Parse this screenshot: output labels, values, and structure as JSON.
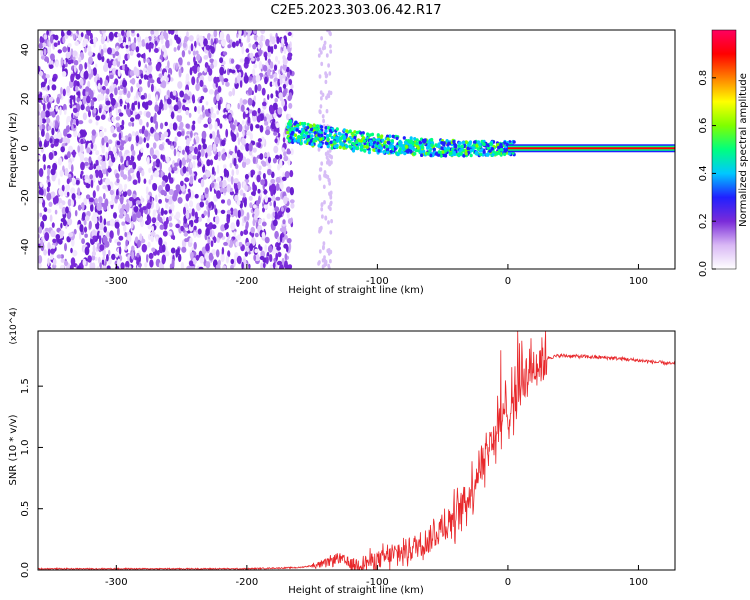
{
  "title": "C2E5.2023.303.06.42.R17",
  "colors": {
    "background": "#ffffff",
    "axis": "#000000",
    "snr_line": "#e8282b",
    "noise_purple": "#7a2bd9"
  },
  "chart_data": [
    {
      "type": "heatmap",
      "xlabel": "Height of straight line (km)",
      "ylabel": "Frequency (Hz)",
      "xlim": [
        -360,
        128
      ],
      "ylim": [
        -49,
        48
      ],
      "xticks": [
        -300,
        -200,
        -100,
        0,
        100
      ],
      "yticks": [
        -40,
        -20,
        0,
        20,
        40
      ],
      "colorbar": {
        "label": "Normalized spectral amplitude",
        "range": [
          0,
          1
        ],
        "ticks": [
          0.0,
          0.2,
          0.4,
          0.6,
          0.8
        ],
        "colormap": [
          "#ffffff",
          "#d9b8f5",
          "#7a2bd9",
          "#2020ff",
          "#00c8ff",
          "#00ff7f",
          "#7fff00",
          "#ffff00",
          "#ff8000",
          "#ff0000",
          "#ff0060"
        ]
      },
      "regions": [
        {
          "desc": "broadband noise",
          "x": [
            -360,
            -165
          ],
          "y": [
            -49,
            48
          ],
          "amplitude": 0.2
        },
        {
          "desc": "sparse column",
          "x": [
            -145,
            -135
          ],
          "y": [
            -49,
            48
          ],
          "amplitude": 0.1
        },
        {
          "desc": "signal band",
          "x": [
            -170,
            5
          ],
          "center_freq_start": 7,
          "center_freq_end": 0,
          "amplitude": 0.45
        },
        {
          "desc": "tone",
          "x": [
            0,
            128
          ],
          "y": [
            0,
            0
          ],
          "amplitude": 0.95
        }
      ]
    },
    {
      "type": "line",
      "xlabel": "Height of straight line (km)",
      "ylabel": "SNR (10 * v/v)",
      "y_multiplier": "(x10^4)",
      "xlim": [
        -360,
        128
      ],
      "ylim": [
        0,
        1.95
      ],
      "xticks": [
        -300,
        -200,
        -100,
        0,
        100
      ],
      "yticks": [
        0.0,
        0.5,
        1.0,
        1.5
      ],
      "series": [
        {
          "x": [
            -360,
            -300,
            -200,
            -160,
            -140,
            -130,
            -120,
            -100,
            -80,
            -60,
            -40,
            -30,
            -20,
            -10,
            0,
            10,
            20,
            30,
            40,
            60,
            80,
            100,
            128
          ],
          "y": [
            0.01,
            0.01,
            0.01,
            0.02,
            0.05,
            0.1,
            0.04,
            0.08,
            0.15,
            0.25,
            0.45,
            0.6,
            0.9,
            1.1,
            1.3,
            1.55,
            1.68,
            1.73,
            1.75,
            1.74,
            1.73,
            1.71,
            1.68
          ]
        }
      ]
    }
  ]
}
